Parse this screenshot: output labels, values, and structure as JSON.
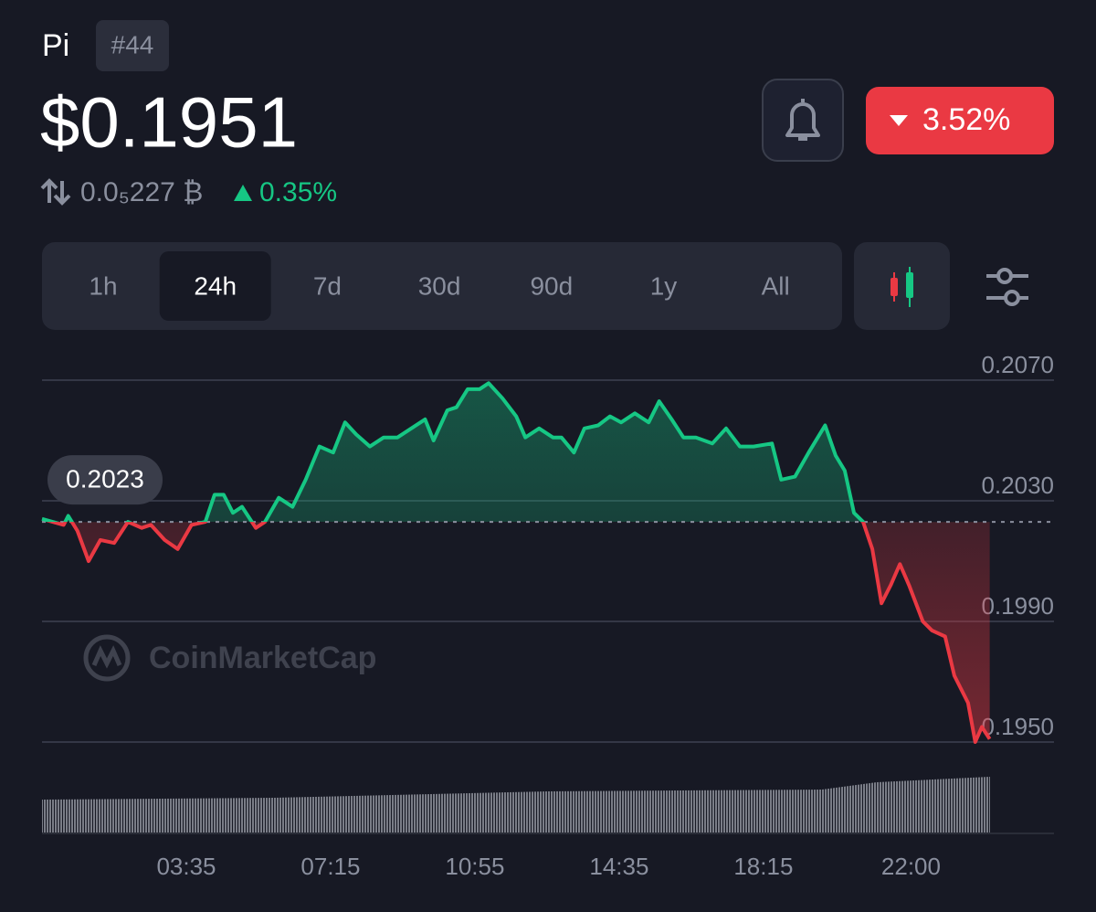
{
  "header": {
    "title": "Pi",
    "rank": "#44",
    "price": "$0.1951",
    "btc_price": "0.0₅227 ₿",
    "btc_change": "0.35%",
    "change": "3.52%"
  },
  "tabs": [
    "1h",
    "24h",
    "7d",
    "30d",
    "90d",
    "1y",
    "All"
  ],
  "active_tab": "24h",
  "watermark": "CoinMarketCap",
  "chart_data": {
    "type": "line",
    "x": [
      -5,
      28,
      35,
      49,
      66,
      84,
      105,
      126,
      147,
      161,
      182,
      202,
      223,
      244,
      258,
      272,
      286,
      300,
      321,
      335,
      356,
      377,
      397,
      418,
      439,
      457,
      474,
      495,
      516,
      537,
      558,
      579,
      592,
      613,
      627,
      644,
      662,
      676,
      697,
      718,
      732,
      753,
      774,
      787,
      806,
      822,
      843,
      861,
      878,
      899,
      920,
      936,
      955,
      973,
      992,
      1017,
      1038,
      1059,
      1080,
      1108,
      1122,
      1143,
      1164,
      1189,
      1205,
      1219,
      1233,
      1247,
      1261,
      1275,
      1289,
      1303,
      1317,
      1338,
      1352,
      1372,
      1386,
      1407,
      1418,
      1428,
      1440
    ],
    "values": [
      0.2024,
      0.2022,
      0.2025,
      0.202,
      0.201,
      0.2017,
      0.2016,
      0.2023,
      0.2021,
      0.2022,
      0.2017,
      0.2014,
      0.2022,
      0.2023,
      0.2032,
      0.2032,
      0.2026,
      0.2028,
      0.2021,
      0.2023,
      0.2031,
      0.2028,
      0.2037,
      0.2048,
      0.2046,
      0.2056,
      0.2052,
      0.2048,
      0.2051,
      0.2051,
      0.2054,
      0.2057,
      0.205,
      0.206,
      0.2061,
      0.2067,
      0.2067,
      0.2069,
      0.2064,
      0.2058,
      0.2051,
      0.2054,
      0.2051,
      0.2051,
      0.2046,
      0.2054,
      0.2055,
      0.2058,
      0.2056,
      0.2059,
      0.2056,
      0.2063,
      0.2057,
      0.2051,
      0.2051,
      0.2049,
      0.2054,
      0.2048,
      0.2048,
      0.2049,
      0.2037,
      0.2038,
      0.2046,
      0.2055,
      0.2045,
      0.204,
      0.2026,
      0.2023,
      0.2014,
      0.1996,
      0.2002,
      0.2009,
      0.2002,
      0.199,
      0.1987,
      0.1985,
      0.1972,
      0.1963,
      0.195,
      0.1955,
      0.1951
    ],
    "baseline": 0.2023,
    "up_color": "#16c784",
    "down_color": "#ea3943",
    "xlim": [
      -5,
      1538
    ],
    "xticks": [
      {
        "value": 215,
        "label": "03:35"
      },
      {
        "value": 435,
        "label": "07:15"
      },
      {
        "value": 655,
        "label": "10:55"
      },
      {
        "value": 875,
        "label": "14:35"
      },
      {
        "value": 1095,
        "label": "18:15"
      },
      {
        "value": 1320,
        "label": "22:00"
      }
    ],
    "ylim": [
      0.195,
      0.207
    ],
    "yticks": [
      {
        "value": 0.207,
        "label": "0.2070"
      },
      {
        "value": 0.203,
        "label": "0.2030"
      },
      {
        "value": 0.199,
        "label": "0.1990"
      },
      {
        "value": 0.195,
        "label": "0.1950"
      }
    ],
    "grid": true
  }
}
